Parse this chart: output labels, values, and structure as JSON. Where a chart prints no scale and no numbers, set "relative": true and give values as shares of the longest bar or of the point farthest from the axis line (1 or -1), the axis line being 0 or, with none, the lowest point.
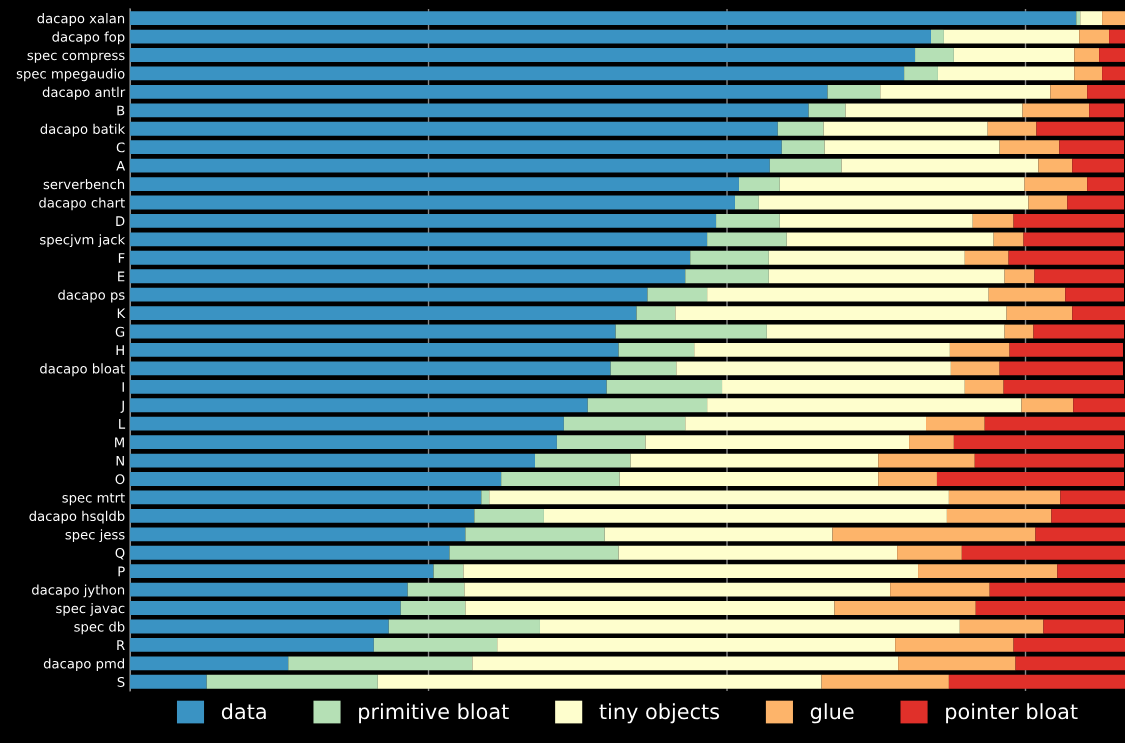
{
  "chart_data": {
    "type": "bar",
    "orientation": "horizontal",
    "stacked": true,
    "relative": true,
    "categories": [
      "dacapo xalan",
      "dacapo fop",
      "spec compress",
      "spec mpegaudio",
      "dacapo antlr",
      "B",
      "dacapo batik",
      "C",
      "A",
      "serverbench",
      "dacapo chart",
      "D",
      "specjvm jack",
      "F",
      "E",
      "dacapo ps",
      "K",
      "G",
      "H",
      "dacapo bloat",
      "I",
      "J",
      "L",
      "M",
      "N",
      "O",
      "spec mtrt",
      "dacapo hsqldb",
      "spec jess",
      "Q",
      "P",
      "dacapo jython",
      "spec javac",
      "spec db",
      "R",
      "dacapo pmd",
      "S"
    ],
    "series": [
      {
        "name": "data",
        "color": "#3a93c3",
        "values": [
          0.951,
          0.805,
          0.789,
          0.778,
          0.701,
          0.682,
          0.651,
          0.655,
          0.643,
          0.612,
          0.608,
          0.589,
          0.58,
          0.563,
          0.558,
          0.52,
          0.509,
          0.488,
          0.491,
          0.483,
          0.479,
          0.46,
          0.436,
          0.429,
          0.407,
          0.373,
          0.353,
          0.346,
          0.337,
          0.321,
          0.305,
          0.279,
          0.272,
          0.26,
          0.245,
          0.159,
          0.077
        ]
      },
      {
        "name": "primitive bloat",
        "color": "#b5e0b5",
        "values": [
          0.004,
          0.013,
          0.039,
          0.034,
          0.053,
          0.037,
          0.046,
          0.043,
          0.072,
          0.041,
          0.024,
          0.064,
          0.08,
          0.079,
          0.084,
          0.06,
          0.039,
          0.152,
          0.076,
          0.066,
          0.116,
          0.12,
          0.122,
          0.089,
          0.096,
          0.119,
          0.008,
          0.07,
          0.14,
          0.17,
          0.03,
          0.057,
          0.065,
          0.152,
          0.124,
          0.185,
          0.172
        ]
      },
      {
        "name": "tiny objects",
        "color": "#fefecd",
        "values": [
          0.022,
          0.136,
          0.121,
          0.137,
          0.171,
          0.178,
          0.165,
          0.176,
          0.198,
          0.246,
          0.271,
          0.194,
          0.208,
          0.197,
          0.237,
          0.283,
          0.333,
          0.239,
          0.257,
          0.276,
          0.244,
          0.316,
          0.242,
          0.265,
          0.249,
          0.26,
          0.462,
          0.405,
          0.229,
          0.28,
          0.457,
          0.428,
          0.371,
          0.422,
          0.4,
          0.428,
          0.446
        ]
      },
      {
        "name": "glue",
        "color": "#fdb46a",
        "values": [
          0.023,
          0.03,
          0.025,
          0.028,
          0.037,
          0.067,
          0.049,
          0.06,
          0.034,
          0.063,
          0.039,
          0.041,
          0.03,
          0.044,
          0.03,
          0.077,
          0.066,
          0.029,
          0.06,
          0.049,
          0.039,
          0.052,
          0.059,
          0.045,
          0.097,
          0.059,
          0.112,
          0.105,
          0.204,
          0.065,
          0.14,
          0.1,
          0.142,
          0.084,
          0.119,
          0.118,
          0.128
        ]
      },
      {
        "name": "pointer bloat",
        "color": "#e0302a",
        "values": [
          0.0,
          0.016,
          0.026,
          0.023,
          0.038,
          0.035,
          0.088,
          0.065,
          0.052,
          0.037,
          0.057,
          0.111,
          0.101,
          0.116,
          0.09,
          0.059,
          0.053,
          0.091,
          0.114,
          0.124,
          0.121,
          0.052,
          0.141,
          0.171,
          0.15,
          0.188,
          0.065,
          0.074,
          0.09,
          0.164,
          0.068,
          0.136,
          0.15,
          0.081,
          0.112,
          0.11,
          0.177
        ]
      }
    ],
    "tick_labels": "y",
    "grid": "x",
    "legend": "bottom"
  }
}
